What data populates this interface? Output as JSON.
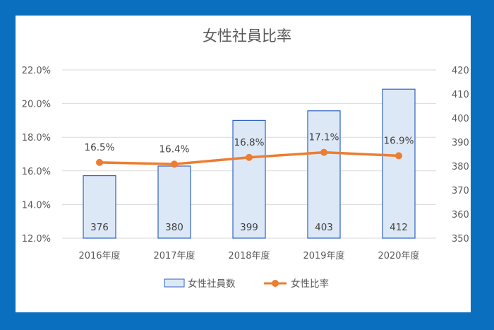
{
  "chart_data": {
    "type": "bar+line",
    "title": "女性社員比率",
    "categories": [
      "2016年度",
      "2017年度",
      "2018年度",
      "2019年度",
      "2020年度"
    ],
    "series": [
      {
        "name": "女性社員数",
        "type": "bar",
        "axis": "right",
        "values": [
          376,
          380,
          399,
          403,
          412
        ],
        "labels": [
          "376",
          "380",
          "399",
          "403",
          "412"
        ],
        "color": "#dde8f6",
        "border_color": "#2f62c4"
      },
      {
        "name": "女性比率",
        "type": "line",
        "axis": "left",
        "values": [
          16.5,
          16.4,
          16.8,
          17.1,
          16.9
        ],
        "labels": [
          "16.5%",
          "16.4%",
          "16.8%",
          "17.1%",
          "16.9%"
        ],
        "color": "#ed7d31"
      }
    ],
    "y_left": {
      "ylim": [
        12.0,
        22.0
      ],
      "ticks": [
        "12.0%",
        "14.0%",
        "16.0%",
        "18.0%",
        "20.0%",
        "22.0%"
      ],
      "tick_values": [
        12,
        14,
        16,
        18,
        20,
        22
      ]
    },
    "y_right": {
      "ylim": [
        350,
        420
      ],
      "ticks": [
        "350",
        "360",
        "370",
        "380",
        "390",
        "400",
        "410",
        "420"
      ],
      "tick_values": [
        350,
        360,
        370,
        380,
        390,
        400,
        410,
        420
      ]
    },
    "grid": true,
    "legend_position": "bottom"
  },
  "colors": {
    "frame": "#0b6fc0",
    "gridline": "#d9d9d9"
  }
}
